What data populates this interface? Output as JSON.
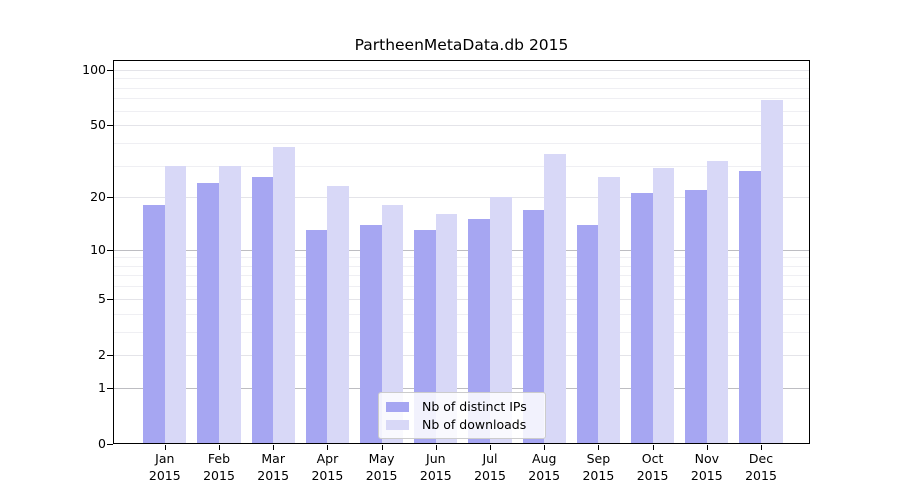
{
  "title": "PartheenMetaData.db 2015",
  "chart_data": {
    "type": "bar",
    "title": "PartheenMetaData.db 2015",
    "categories": [
      "Jan",
      "Feb",
      "Mar",
      "Apr",
      "May",
      "Jun",
      "Jul",
      "Aug",
      "Sep",
      "Oct",
      "Nov",
      "Dec"
    ],
    "x_tick_second_line": "2015",
    "series": [
      {
        "name": "Nb of distinct IPs",
        "color": "#a6a6f2",
        "values": [
          18,
          24,
          26,
          13,
          14,
          13,
          15,
          17,
          14,
          21,
          22,
          28
        ]
      },
      {
        "name": "Nb of downloads",
        "color": "#d8d8f7",
        "values": [
          30,
          30,
          38,
          23,
          18,
          16,
          20,
          35,
          26,
          29,
          32,
          69
        ]
      }
    ],
    "xlabel": "",
    "ylabel": "",
    "ylim": [
      0,
      100
    ],
    "yscale": "log(1+y)",
    "y_major_ticks": [
      0,
      1,
      2,
      5,
      10,
      20,
      50,
      100
    ],
    "y_minor_gridlines": [
      3,
      4,
      6,
      7,
      8,
      9,
      30,
      40,
      60,
      70,
      80,
      90
    ],
    "y_emphasized_gridlines": [
      1,
      10
    ],
    "grid": true,
    "legend_position": "lower center",
    "bar_layout": "grouped side-by-side"
  }
}
